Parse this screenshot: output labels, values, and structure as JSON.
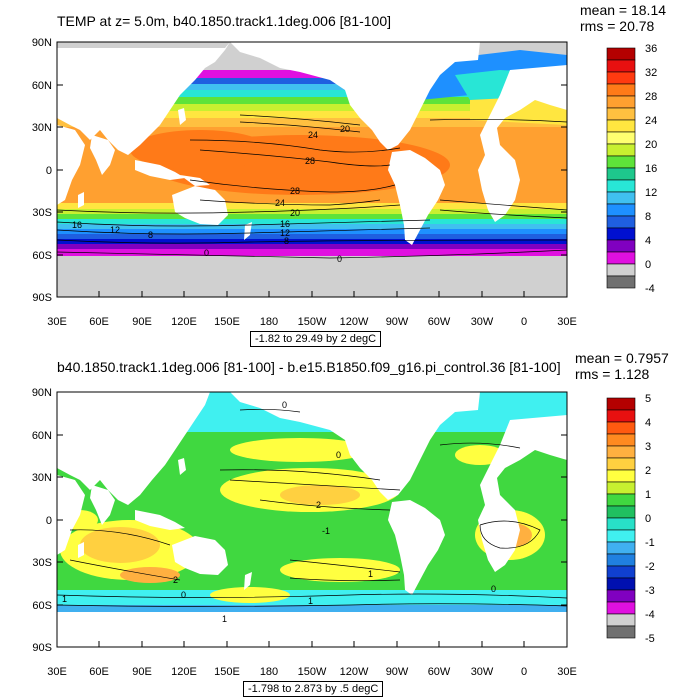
{
  "panels": [
    {
      "title": "TEMP at z=   5.0m, b40.1850.track1.1deg.006 [81-100]",
      "mean": "mean = 18.14",
      "rms": "rms = 20.78",
      "range": "-1.82 to 29.49 by 2 degC",
      "lat_ticks": [
        "90N",
        "60N",
        "30N",
        "0",
        "30S",
        "60S",
        "90S"
      ],
      "lon_ticks": [
        "30E",
        "60E",
        "90E",
        "120E",
        "150E",
        "180",
        "150W",
        "120W",
        "90W",
        "60W",
        "30W",
        "0",
        "30E"
      ],
      "colorbar_labels": [
        "36",
        "32",
        "28",
        "24",
        "20",
        "16",
        "12",
        "8",
        "4",
        "0",
        "-4"
      ],
      "colorbar_colors": [
        "#b40000",
        "#e81010",
        "#ff3a10",
        "#ff7a18",
        "#ffa030",
        "#ffc040",
        "#ffe640",
        "#ffff70",
        "#c8f030",
        "#5ee33a",
        "#1ec88c",
        "#28e6d6",
        "#40c0f0",
        "#1e90ff",
        "#1f5fe0",
        "#0010d0",
        "#8000c0",
        "#e010e0",
        "#d0d0d0",
        "#707070"
      ],
      "contour_labels": [
        "20",
        "24",
        "28",
        "28",
        "24",
        "20",
        "16",
        "16",
        "12",
        "12",
        "8",
        "8",
        "0",
        "0"
      ],
      "land_color": "#ffffff",
      "ice_color": "#d0d0d0"
    },
    {
      "title": "b40.1850.track1.1deg.006 [81-100] - b.e15.B1850.f09_g16.pi_control.36 [81-100]",
      "mean": "mean = 0.7957",
      "rms": "rms = 1.128",
      "range": "-1.798 to 2.873 by .5 degC",
      "lat_ticks": [
        "90N",
        "60N",
        "30N",
        "0",
        "30S",
        "60S",
        "90S"
      ],
      "lon_ticks": [
        "30E",
        "60E",
        "90E",
        "120E",
        "150E",
        "180",
        "150W",
        "120W",
        "90W",
        "60W",
        "30W",
        "0",
        "30E"
      ],
      "colorbar_labels": [
        "5",
        "4",
        "3",
        "2",
        "1",
        "0",
        "-1",
        "-2",
        "-3",
        "-4",
        "-5"
      ],
      "colorbar_colors": [
        "#b40000",
        "#e81010",
        "#ff5a10",
        "#ff8a20",
        "#ffb040",
        "#ffd040",
        "#ffff40",
        "#c8f030",
        "#40d840",
        "#20c060",
        "#28e0c8",
        "#40f0f0",
        "#40b0f0",
        "#2080e0",
        "#1040d0",
        "#0010b0",
        "#8000c0",
        "#e010e0",
        "#d0d0d0",
        "#707070"
      ],
      "contour_labels": [
        "0",
        "0",
        "2",
        "-1",
        "1",
        "1",
        "2",
        "0",
        "0",
        "1",
        "1"
      ],
      "land_color": "#ffffff"
    }
  ]
}
